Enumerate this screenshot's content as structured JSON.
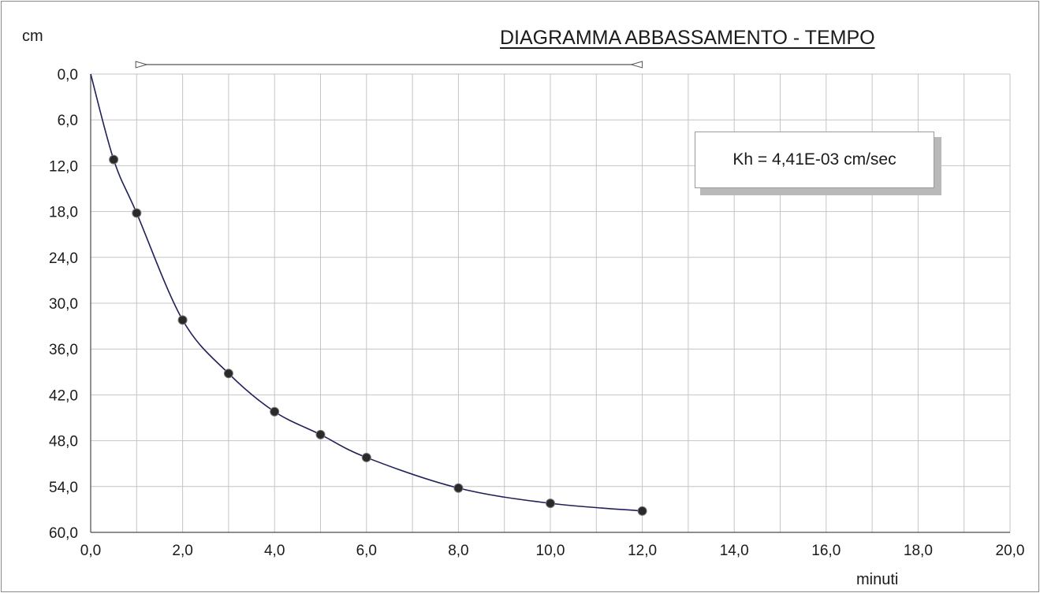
{
  "title": "DIAGRAMMA   ABBASSAMENTO - TEMPO",
  "annotation": "Kh = 4,41E-03 cm/sec",
  "chart_data": {
    "type": "scatter",
    "title": "DIAGRAMMA   ABBASSAMENTO - TEMPO",
    "xlabel": "minuti",
    "ylabel": "cm",
    "xlim": [
      0,
      20
    ],
    "ylim": [
      0,
      60
    ],
    "y_inverted": true,
    "grid": true,
    "x_ticks": [
      "0,0",
      "2,0",
      "4,0",
      "6,0",
      "8,0",
      "10,0",
      "12,0",
      "14,0",
      "16,0",
      "18,0",
      "20,0"
    ],
    "y_ticks": [
      "0,0",
      "6,0",
      "12,0",
      "18,0",
      "24,0",
      "30,0",
      "36,0",
      "42,0",
      "48,0",
      "54,0",
      "60,0"
    ],
    "series": [
      {
        "x": [
          0,
          0.5,
          1,
          2,
          3,
          4,
          5,
          6,
          8,
          10,
          12
        ],
        "y": [
          0,
          11.2,
          18.2,
          32.2,
          39.2,
          44.2,
          47.2,
          50.2,
          54.2,
          56.2,
          57.2
        ],
        "color": "#1f1f5a"
      }
    ],
    "range_marker": {
      "from": 0.5,
      "to": 12
    }
  }
}
